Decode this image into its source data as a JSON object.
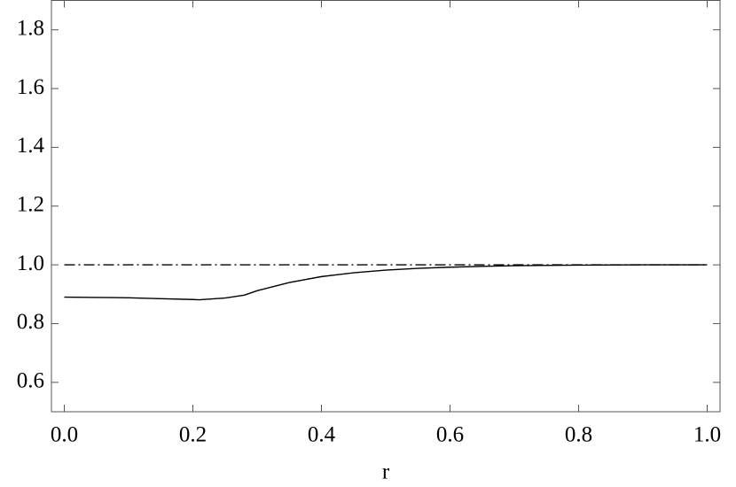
{
  "chart_data": {
    "type": "line",
    "xlabel": "r",
    "xlim": [
      -0.02,
      1.02
    ],
    "ylim": [
      0.5,
      1.9
    ],
    "xticks": [
      {
        "value": 0,
        "label": "0.0"
      },
      0.2,
      0.4,
      0.6,
      0.8,
      {
        "value": 1,
        "label": "1.0"
      }
    ],
    "yticks": [
      0.6,
      0.8,
      {
        "value": 1,
        "label": "1.0"
      },
      1.2,
      1.4,
      1.6,
      1.8
    ],
    "grid": false,
    "series": [
      {
        "color": "#000000",
        "dash": "none",
        "x": [
          0,
          0.05,
          0.1,
          0.15,
          0.2,
          0.21,
          0.25,
          0.28,
          0.3,
          0.35,
          0.4,
          0.45,
          0.5,
          0.55,
          0.6,
          0.65,
          0.7,
          0.8,
          0.9,
          1.0
        ],
        "values": [
          0.89,
          0.889,
          0.888,
          0.885,
          0.882,
          0.881,
          0.887,
          0.897,
          0.912,
          0.94,
          0.96,
          0.973,
          0.982,
          0.988,
          0.992,
          0.995,
          0.997,
          0.999,
          1.0,
          1.0
        ]
      },
      {
        "color": "#000000",
        "dash": "12 4 2 4",
        "x": [
          0,
          1.0
        ],
        "values": [
          1.0,
          1.0
        ]
      }
    ]
  }
}
